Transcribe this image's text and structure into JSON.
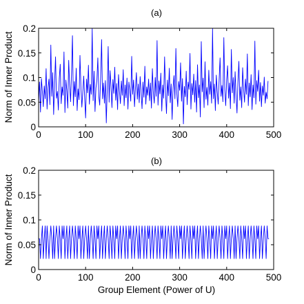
{
  "colors": {
    "line": "#0000ff",
    "axes": "#000000",
    "background": "#ffffff"
  },
  "chart_data": [
    {
      "type": "line",
      "title": "(a)",
      "xlabel": "",
      "ylabel": "Norm of Inner Product",
      "xlim": [
        0,
        500
      ],
      "ylim": [
        0,
        0.2
      ],
      "xticks": [
        "0",
        "100",
        "200",
        "300",
        "400",
        "500"
      ],
      "yticks": [
        "0",
        "0.05",
        "0.1",
        "0.15",
        "0.2"
      ],
      "grid": false,
      "series": [
        {
          "x_start": 0,
          "x_step": 2,
          "values": [
            0.052,
            0.091,
            0.03,
            0.098,
            0.071,
            0.041,
            0.083,
            0.057,
            0.118,
            0.036,
            0.079,
            0.097,
            0.045,
            0.166,
            0.062,
            0.11,
            0.025,
            0.089,
            0.142,
            0.058,
            0.072,
            0.034,
            0.099,
            0.127,
            0.047,
            0.081,
            0.064,
            0.152,
            0.029,
            0.095,
            0.074,
            0.038,
            0.135,
            0.085,
            0.051,
            0.108,
            0.185,
            0.043,
            0.092,
            0.061,
            0.119,
            0.033,
            0.077,
            0.055,
            0.145,
            0.082,
            0.04,
            0.071,
            0.103,
            0.058,
            0.018,
            0.097,
            0.069,
            0.125,
            0.046,
            0.086,
            0.066,
            0.199,
            0.053,
            0.113,
            0.031,
            0.079,
            0.095,
            0.14,
            0.062,
            0.044,
            0.101,
            0.177,
            0.057,
            0.089,
            0.048,
            0.094,
            0.008,
            0.076,
            0.163,
            0.05,
            0.114,
            0.083,
            0.039,
            0.096,
            0.068,
            0.121,
            0.054,
            0.088,
            0.035,
            0.106,
            0.072,
            0.047,
            0.093,
            0.064,
            0.116,
            0.043,
            0.085,
            0.059,
            0.099,
            0.036,
            0.091,
            0.074,
            0.052,
            0.143,
            0.066,
            0.095,
            0.041,
            0.078,
            0.11,
            0.056,
            0.087,
            0.049,
            0.102,
            0.069,
            0.037,
            0.091,
            0.06,
            0.123,
            0.046,
            0.081,
            0.064,
            0.097,
            0.053,
            0.089,
            0.038,
            0.118,
            0.071,
            0.048,
            0.1,
            0.062,
            0.175,
            0.044,
            0.093,
            0.067,
            0.109,
            0.032,
            0.085,
            0.058,
            0.142,
            0.07,
            0.027,
            0.095,
            0.063,
            0.119,
            0.049,
            0.087,
            0.015,
            0.079,
            0.104,
            0.057,
            0.159,
            0.068,
            0.041,
            0.092,
            0.074,
            0.13,
            0.052,
            0.098,
            0.006,
            0.082,
            0.061,
            0.113,
            0.045,
            0.091,
            0.076,
            0.149,
            0.036,
            0.088,
            0.065,
            0.107,
            0.05,
            0.094,
            0.03,
            0.126,
            0.059,
            0.085,
            0.02,
            0.173,
            0.071,
            0.099,
            0.039,
            0.132,
            0.056,
            0.08,
            0.044,
            0.115,
            0.066,
            0.092,
            0.048,
            0.199,
            0.057,
            0.087,
            0.033,
            0.105,
            0.071,
            0.046,
            0.096,
            0.14,
            0.062,
            0.084,
            0.051,
            0.181,
            0.075,
            0.043,
            0.095,
            0.124,
            0.058,
            0.089,
            0.037,
            0.157,
            0.069,
            0.1,
            0.048,
            0.112,
            0.062,
            0.028,
            0.092,
            0.133,
            0.054,
            0.081,
            0.039,
            0.12,
            0.077,
            0.05,
            0.097,
            0.066,
            0.148,
            0.043,
            0.089,
            0.061,
            0.106,
            0.035,
            0.085,
            0.059,
            0.174,
            0.046,
            0.094,
            0.072,
            0.115,
            0.052,
            0.09,
            0.041,
            0.083,
            0.064,
            0.101,
            0.048,
            0.07,
            0.057,
            0.093
          ]
        }
      ]
    },
    {
      "type": "line",
      "title": "(b)",
      "xlabel": "Group Element (Power of U)",
      "ylabel": "Norm of Inner Product",
      "xlim": [
        0,
        500
      ],
      "ylim": [
        0,
        0.2
      ],
      "xticks": [
        "0",
        "100",
        "200",
        "300",
        "400",
        "500"
      ],
      "yticks": [
        "0",
        "0.05",
        "0.1",
        "0.15",
        "0.2"
      ],
      "grid": false,
      "series": [
        {
          "x_start": 0,
          "x_step": 2,
          "values": [
            0.062,
            0.062,
            0.022,
            0.062,
            0.088,
            0.022,
            0.062,
            0.088,
            0.022,
            0.088,
            0.062,
            0.022,
            0.062,
            0.088,
            0.062,
            0.022,
            0.088,
            0.022,
            0.062,
            0.088,
            0.062,
            0.022,
            0.088,
            0.062,
            0.022,
            0.088,
            0.062,
            0.088,
            0.022,
            0.062,
            0.088,
            0.022,
            0.062,
            0.088,
            0.022,
            0.062,
            0.088,
            0.062,
            0.022,
            0.088,
            0.062,
            0.022,
            0.088,
            0.062,
            0.088,
            0.022,
            0.062,
            0.088,
            0.022,
            0.062,
            0.088,
            0.062,
            0.022,
            0.088,
            0.022,
            0.062,
            0.088,
            0.062,
            0.022,
            0.088,
            0.062,
            0.022,
            0.088,
            0.062,
            0.088,
            0.022,
            0.062,
            0.088,
            0.022,
            0.062,
            0.088,
            0.022,
            0.062,
            0.088,
            0.062,
            0.022,
            0.088,
            0.062,
            0.022,
            0.088,
            0.062,
            0.022,
            0.088,
            0.062,
            0.088,
            0.022,
            0.062,
            0.088,
            0.022,
            0.062,
            0.088,
            0.062,
            0.022,
            0.088,
            0.062,
            0.022,
            0.088,
            0.062,
            0.088,
            0.022,
            0.062,
            0.088,
            0.022,
            0.062,
            0.088,
            0.062,
            0.022,
            0.088,
            0.022,
            0.062,
            0.088,
            0.062,
            0.022,
            0.088,
            0.062,
            0.022,
            0.088,
            0.062,
            0.088,
            0.022,
            0.062,
            0.088,
            0.022,
            0.062,
            0.088,
            0.062,
            0.022,
            0.088,
            0.062,
            0.022,
            0.088,
            0.062,
            0.088,
            0.022,
            0.062,
            0.088,
            0.022,
            0.062,
            0.088,
            0.062,
            0.022,
            0.088,
            0.022,
            0.062,
            0.088,
            0.062,
            0.022,
            0.088,
            0.062,
            0.022,
            0.088,
            0.062,
            0.088,
            0.022,
            0.062,
            0.088,
            0.022,
            0.062,
            0.088,
            0.062,
            0.022,
            0.088,
            0.062,
            0.022,
            0.088,
            0.062,
            0.088,
            0.022,
            0.062,
            0.088,
            0.022,
            0.062,
            0.088,
            0.062,
            0.022,
            0.088,
            0.022,
            0.062,
            0.088,
            0.062,
            0.022,
            0.088,
            0.062,
            0.022,
            0.088,
            0.062,
            0.088,
            0.022,
            0.062,
            0.088,
            0.022,
            0.062,
            0.088,
            0.062,
            0.022,
            0.088,
            0.062,
            0.022,
            0.088,
            0.062,
            0.088,
            0.022,
            0.062,
            0.088,
            0.022,
            0.062,
            0.088,
            0.062,
            0.022,
            0.088,
            0.022,
            0.062,
            0.088,
            0.062,
            0.022,
            0.088,
            0.062,
            0.022,
            0.088,
            0.062,
            0.088,
            0.022,
            0.062,
            0.088,
            0.022,
            0.062,
            0.088,
            0.062,
            0.022,
            0.088,
            0.062,
            0.022,
            0.088,
            0.062,
            0.088,
            0.022,
            0.062,
            0.088,
            0.022,
            0.062,
            0.088,
            0.062,
            0.022,
            0.088,
            0.062,
            0.062
          ]
        }
      ]
    }
  ]
}
